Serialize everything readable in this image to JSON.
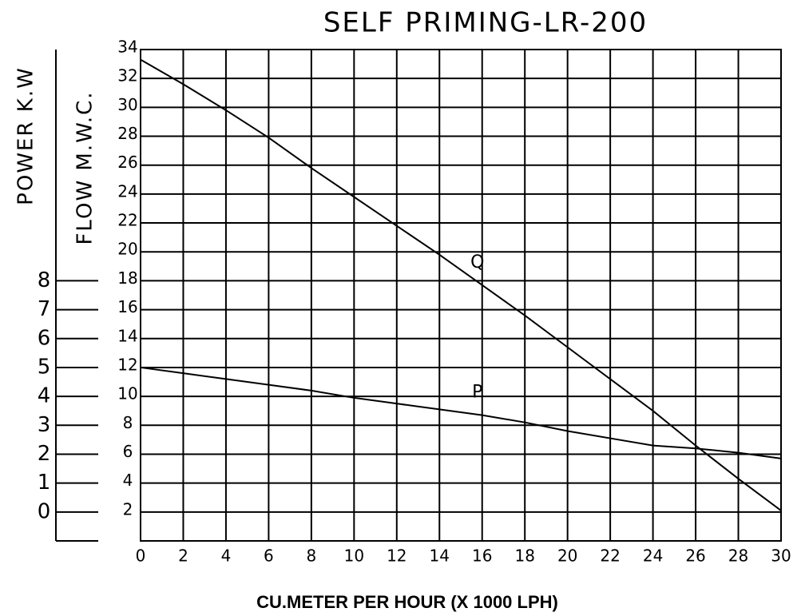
{
  "chart_data": {
    "type": "line",
    "title": "SELF PRIMING-LR-200",
    "x_label": "CU.METER PER HOUR (X 1000 LPH)",
    "y_label": "FLOW M.W.C.",
    "y2_label": "POWER K.W",
    "x": [
      0,
      2,
      4,
      6,
      8,
      10,
      12,
      14,
      16,
      18,
      20,
      22,
      24,
      26,
      28,
      30
    ],
    "series": [
      {
        "name": "Q",
        "color": "#000000",
        "values": [
          33.3,
          31.6,
          29.8,
          27.9,
          25.8,
          23.8,
          21.8,
          19.8,
          17.7,
          15.6,
          13.4,
          11.2,
          9.0,
          6.6,
          4.3,
          2.1
        ]
      },
      {
        "name": "P",
        "color": "#000000",
        "axis": "y2",
        "values": [
          5.0,
          4.8,
          4.6,
          4.4,
          4.2,
          3.95,
          3.75,
          3.55,
          3.35,
          3.1,
          2.8,
          2.55,
          2.3,
          2.2,
          2.05,
          1.85
        ]
      }
    ],
    "xlim": [
      0,
      30
    ],
    "xticks": [
      0,
      2,
      4,
      6,
      8,
      10,
      12,
      14,
      16,
      18,
      20,
      22,
      24,
      26,
      28,
      30
    ],
    "ylim": [
      0,
      34
    ],
    "yticks": [
      2,
      4,
      6,
      8,
      10,
      12,
      14,
      16,
      18,
      20,
      22,
      24,
      26,
      28,
      30,
      32,
      34
    ],
    "y2lim": [
      -1,
      16
    ],
    "y2ticks": [
      0,
      1,
      2,
      3,
      4,
      5,
      6,
      7,
      8
    ],
    "grid": true
  }
}
